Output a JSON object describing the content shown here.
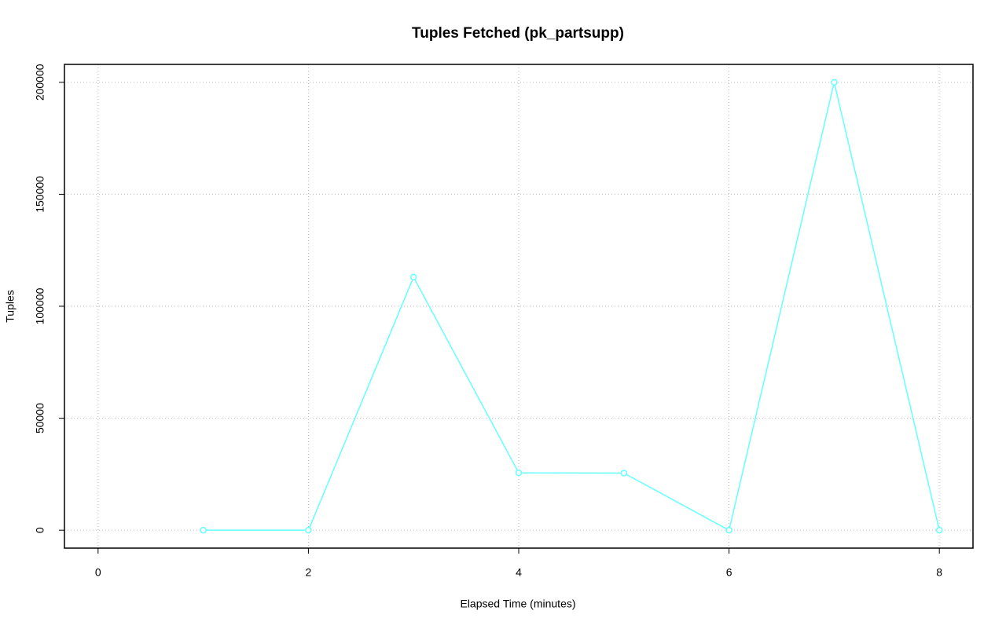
{
  "chart_data": {
    "type": "line",
    "title": "Tuples Fetched (pk_partsupp)",
    "x_label": "Elapsed Time (minutes)",
    "y_label": "Tuples",
    "x": [
      1,
      2,
      3,
      4,
      5,
      6,
      7,
      8
    ],
    "values": [
      0,
      0,
      113000,
      25600,
      25500,
      0,
      200000,
      0
    ],
    "color": "#66ffff",
    "xlim": [
      -0.32,
      8.32
    ],
    "xticks": [
      0,
      2,
      4,
      6,
      8
    ],
    "ylim": [
      -8000,
      208000
    ],
    "yticks": [
      0,
      50000,
      100000,
      150000,
      200000
    ],
    "grid": true
  }
}
